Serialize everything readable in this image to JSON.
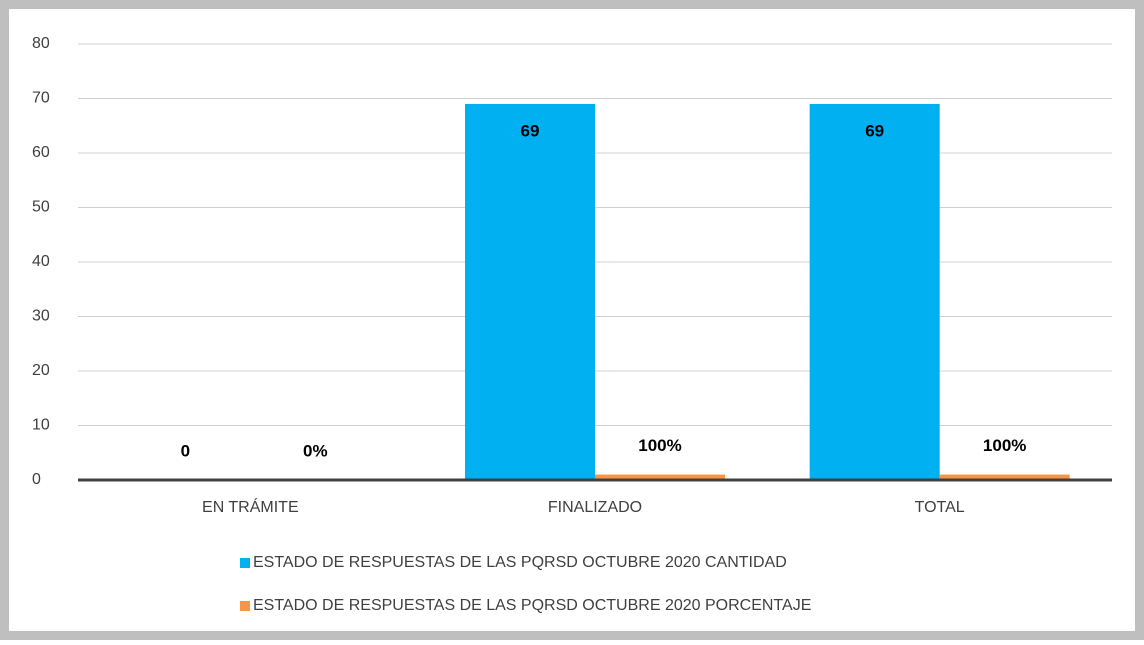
{
  "chart_data": {
    "type": "bar",
    "categories": [
      "EN TRÁMITE",
      "FINALIZADO",
      "TOTAL"
    ],
    "series": [
      {
        "name": "ESTADO DE RESPUESTAS DE LAS PQRSD OCTUBRE 2020 CANTIDAD",
        "color": "#00b0f0",
        "values": [
          0,
          69,
          69
        ]
      },
      {
        "name": "ESTADO DE RESPUESTAS DE LAS PQRSD OCTUBRE 2020 PORCENTAJE",
        "color": "#f79646",
        "values": [
          0,
          1,
          1
        ],
        "value_labels": [
          "0%",
          "100%",
          "100%"
        ]
      }
    ],
    "ylim": [
      0,
      80
    ],
    "yticks": [
      0,
      10,
      20,
      30,
      40,
      50,
      60,
      70,
      80
    ],
    "grid": true,
    "legend": "bottom"
  }
}
